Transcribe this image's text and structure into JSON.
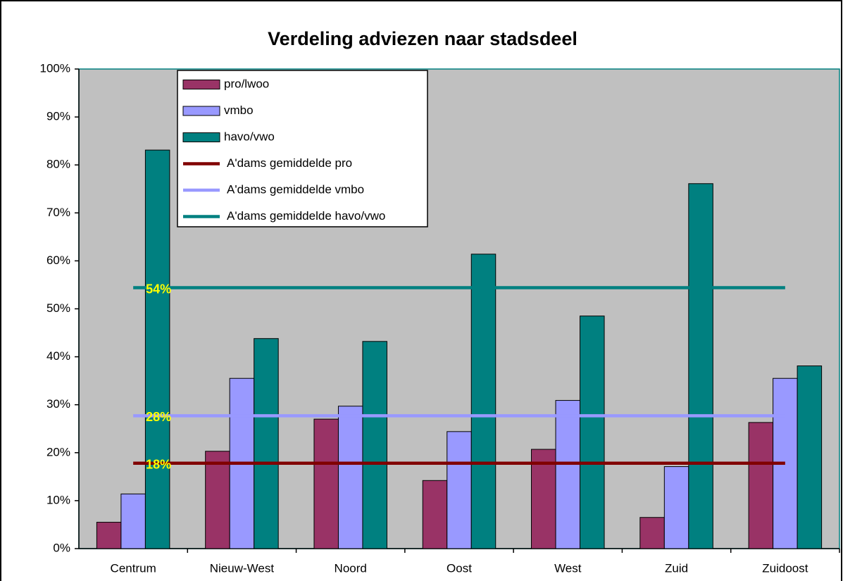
{
  "chart_data": {
    "type": "bar",
    "title": "Verdeling adviezen naar stadsdeel",
    "categories": [
      "Centrum",
      "Nieuw-West",
      "Noord",
      "Oost",
      "West",
      "Zuid",
      "Zuidoost"
    ],
    "series": [
      {
        "name": "pro/lwoo",
        "type": "bar",
        "color": "#993366",
        "values": [
          5.5,
          20.3,
          27.0,
          14.2,
          20.7,
          6.5,
          26.3
        ]
      },
      {
        "name": "vmbo",
        "type": "bar",
        "color": "#9999ff",
        "values": [
          11.4,
          35.5,
          29.7,
          24.4,
          30.9,
          17.1,
          35.5
        ]
      },
      {
        "name": "havo/vwo",
        "type": "bar",
        "color": "#008080",
        "values": [
          83.1,
          43.8,
          43.2,
          61.4,
          48.5,
          76.1,
          38.1
        ]
      },
      {
        "name": "A'dams gemiddelde pro",
        "type": "line",
        "color": "#800000",
        "values": [
          17.8,
          17.8,
          17.8,
          17.8,
          17.8,
          17.8,
          17.8
        ],
        "value_labels": [
          "18%",
          null,
          null,
          null,
          null,
          null,
          null
        ]
      },
      {
        "name": "A'dams gemiddelde vmbo",
        "type": "line",
        "color": "#9999ff",
        "values": [
          27.7,
          27.7,
          27.7,
          27.7,
          27.7,
          27.7,
          27.7
        ],
        "value_labels": [
          "28%",
          null,
          null,
          null,
          null,
          null,
          null
        ]
      },
      {
        "name": "A'dams gemiddelde havo/vwo",
        "type": "line",
        "color": "#008080",
        "values": [
          54.4,
          54.4,
          54.4,
          54.4,
          54.4,
          54.4,
          54.4
        ],
        "value_labels": [
          "54%",
          null,
          null,
          null,
          null,
          null,
          null
        ]
      }
    ],
    "ylim": [
      0,
      100
    ],
    "yticks": [
      {
        "value": 0,
        "label": "0%"
      },
      {
        "value": 10,
        "label": "10%"
      },
      {
        "value": 20,
        "label": "20%"
      },
      {
        "value": 30,
        "label": "30%"
      },
      {
        "value": 40,
        "label": "40%"
      },
      {
        "value": 50,
        "label": "50%"
      },
      {
        "value": 60,
        "label": "60%"
      },
      {
        "value": 70,
        "label": "70%"
      },
      {
        "value": 80,
        "label": "80%"
      },
      {
        "value": 90,
        "label": "90%"
      },
      {
        "value": 100,
        "label": "100%"
      }
    ],
    "grid": false,
    "legend": "upper left"
  }
}
